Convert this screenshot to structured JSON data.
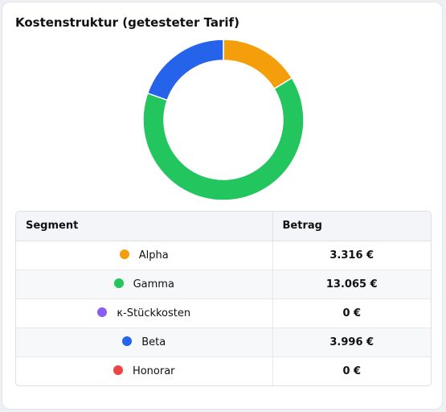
{
  "card": {
    "title": "Kostenstruktur (getesteter Tarif)"
  },
  "table": {
    "headers": [
      "Segment",
      "Betrag"
    ]
  },
  "chart_data": {
    "type": "pie",
    "title": "Kostenstruktur (getesteter Tarif)",
    "donut": true,
    "segments": [
      {
        "name": "Alpha",
        "value": 3316,
        "display": "3.316 €",
        "color": "#f59e0b"
      },
      {
        "name": "Gamma",
        "value": 13065,
        "display": "13.065 €",
        "color": "#22c55e"
      },
      {
        "name": "κ-Stückkosten",
        "value": 0,
        "display": "0 €",
        "color": "#8b5cf6"
      },
      {
        "name": "Beta",
        "value": 3996,
        "display": "3.996 €",
        "color": "#2563eb"
      },
      {
        "name": "Honorar",
        "value": 0,
        "display": "0 €",
        "color": "#ef4444"
      }
    ]
  }
}
